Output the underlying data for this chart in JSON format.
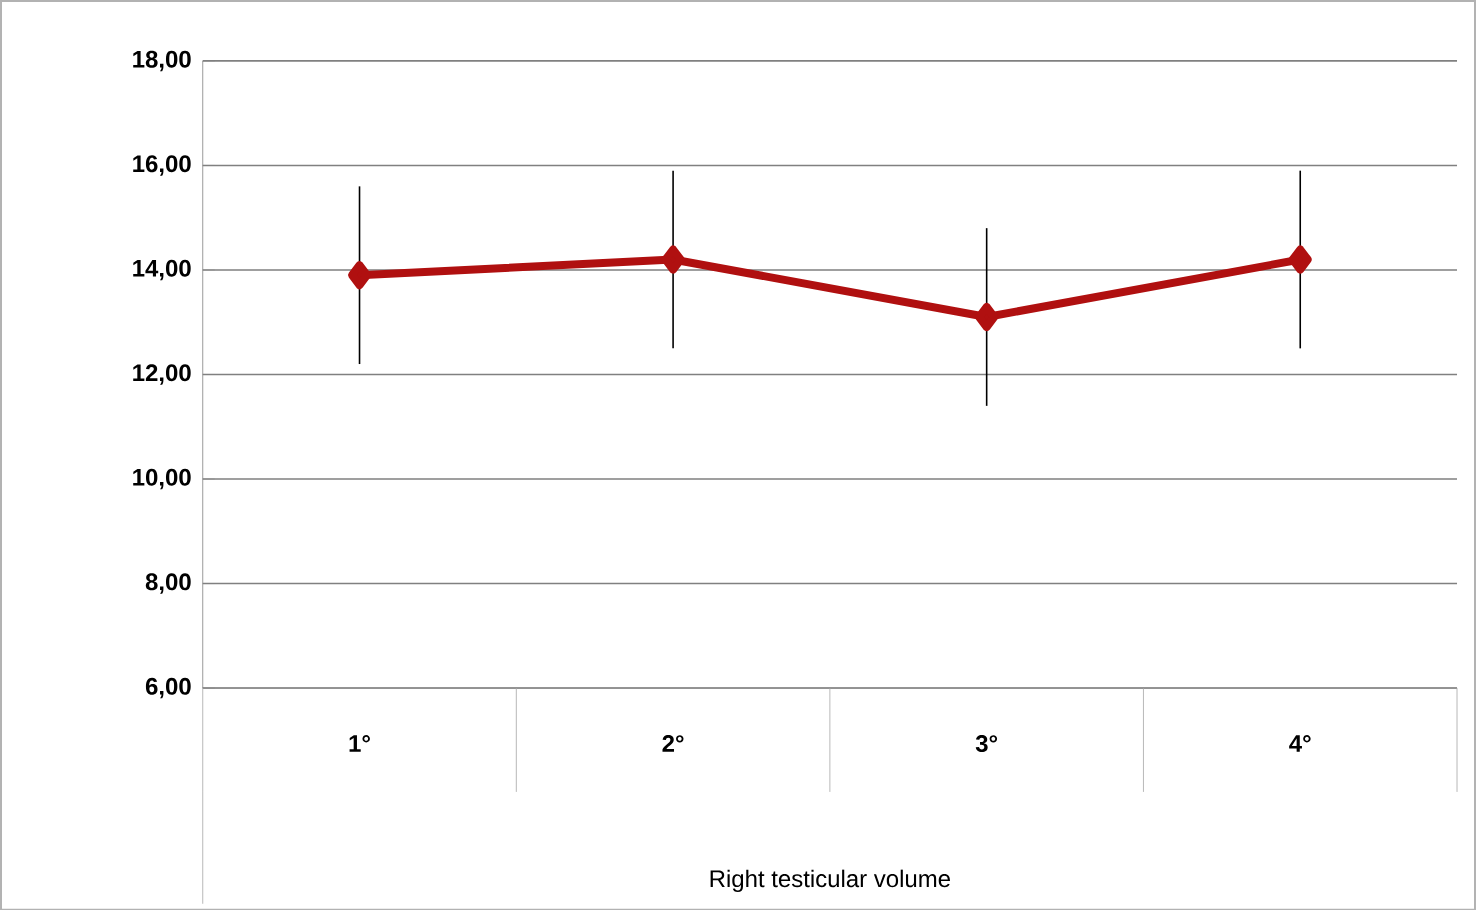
{
  "chart_data": {
    "type": "line",
    "xlabel": "Right testicular volume",
    "categories": [
      "1°",
      "2°",
      "3°",
      "4°"
    ],
    "series": [
      {
        "color": "#b01010",
        "values": [
          13.9,
          14.2,
          13.1,
          14.2
        ],
        "errors": [
          1.7,
          1.7,
          1.7,
          1.7
        ]
      }
    ],
    "ylim": [
      6,
      18
    ],
    "yticks": [
      {
        "value": 6,
        "label": "6,00"
      },
      {
        "value": 8,
        "label": "8,00"
      },
      {
        "value": 10,
        "label": "10,00"
      },
      {
        "value": 12,
        "label": "12,00"
      },
      {
        "value": 14,
        "label": "14,00"
      },
      {
        "value": 16,
        "label": "16,00"
      },
      {
        "value": 18,
        "label": "18,00"
      }
    ],
    "grid": "y",
    "marker": "diamond",
    "line_style": "solid"
  }
}
